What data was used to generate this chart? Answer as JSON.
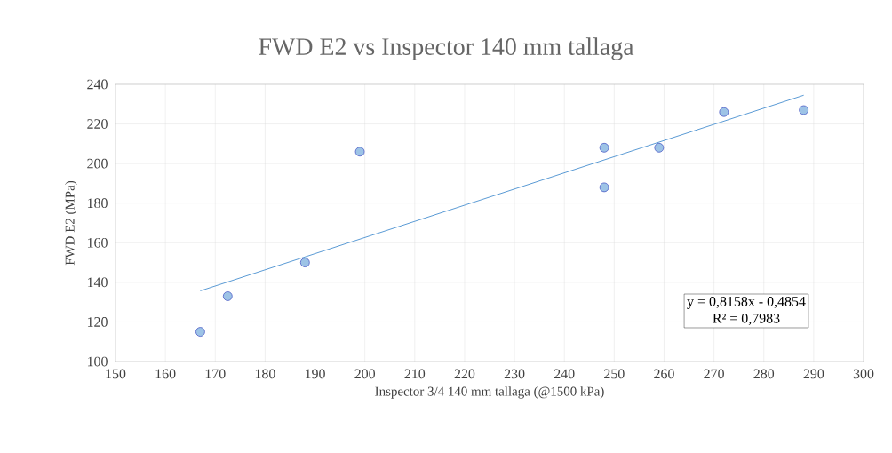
{
  "chart_data": {
    "type": "scatter",
    "title": "FWD E2 vs Inspector 140 mm tallaga",
    "xlabel": "Inspector 3/4 140 mm tallaga (@1500 kPa)",
    "ylabel": "FWD E2 (MPa)",
    "xlim": [
      150,
      300
    ],
    "xticks": [
      150,
      160,
      170,
      180,
      190,
      200,
      210,
      220,
      230,
      240,
      250,
      260,
      270,
      280,
      290,
      300
    ],
    "ylim": [
      100,
      240
    ],
    "yticks": [
      100,
      120,
      140,
      160,
      180,
      200,
      220,
      240
    ],
    "grid": true,
    "series": [
      {
        "color": "#9dc3e6",
        "marker": "circle",
        "x": [
          167,
          172.5,
          188,
          199,
          248,
          248,
          259,
          272,
          288
        ],
        "values": [
          115,
          133,
          150,
          206,
          208,
          188,
          208,
          226,
          227
        ]
      },
      {
        "type": "line",
        "color": "#5b9bd5",
        "marker": "none",
        "x": [
          167,
          288
        ],
        "values": [
          135.7,
          234.5
        ]
      }
    ],
    "annotations": [
      "y = 0,8158x - 0,4854",
      "R² = 0,7983"
    ]
  }
}
